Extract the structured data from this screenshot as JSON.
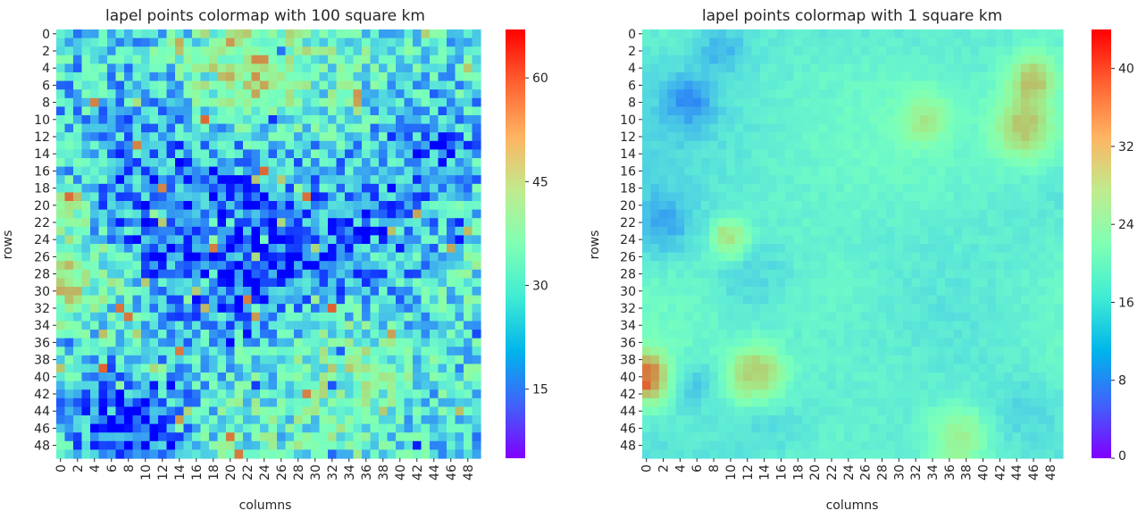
{
  "chart_data": [
    {
      "type": "heatmap",
      "title": "lapel points colormap with 100 square km",
      "xlabel": "columns",
      "ylabel": "rows",
      "rows": 50,
      "cols": 50,
      "x_tick_labels": [
        "0",
        "2",
        "4",
        "6",
        "8",
        "10",
        "12",
        "14",
        "16",
        "18",
        "20",
        "22",
        "24",
        "26",
        "28",
        "30",
        "32",
        "34",
        "36",
        "38",
        "40",
        "42",
        "44",
        "46",
        "48"
      ],
      "y_tick_labels": [
        "0",
        "2",
        "4",
        "6",
        "8",
        "10",
        "12",
        "14",
        "16",
        "18",
        "20",
        "22",
        "24",
        "26",
        "28",
        "30",
        "32",
        "34",
        "36",
        "38",
        "40",
        "42",
        "44",
        "46",
        "48"
      ],
      "colormap": "rainbow",
      "vmin": 5,
      "vmax": 67,
      "colorbar_ticks": [
        15,
        30,
        45,
        60
      ],
      "colorbar_tick_labels": [
        "15",
        "30",
        "45",
        "60"
      ],
      "grid": false,
      "texture": "noisy",
      "regions": [
        {
          "row": 20,
          "col": 12,
          "r": 12,
          "value": 16
        },
        {
          "row": 26,
          "col": 22,
          "r": 8,
          "value": 10
        },
        {
          "row": 46,
          "col": 10,
          "r": 5,
          "value": 8
        },
        {
          "row": 45,
          "col": 4,
          "r": 5,
          "value": 18
        },
        {
          "row": 24,
          "col": 36,
          "r": 8,
          "value": 17
        },
        {
          "row": 14,
          "col": 44,
          "r": 6,
          "value": 16
        },
        {
          "row": 28,
          "col": 2,
          "r": 5,
          "value": 47
        },
        {
          "row": 4,
          "col": 22,
          "r": 6,
          "value": 47
        },
        {
          "row": 20,
          "col": 1,
          "r": 2,
          "value": 62
        },
        {
          "row": 38,
          "col": 34,
          "r": 6,
          "value": 38
        }
      ]
    },
    {
      "type": "heatmap",
      "title": "lapel points colormap with 1 square km",
      "xlabel": "columns",
      "ylabel": "rows",
      "rows": 50,
      "cols": 50,
      "x_tick_labels": [
        "0",
        "2",
        "4",
        "6",
        "8",
        "10",
        "12",
        "14",
        "16",
        "18",
        "20",
        "22",
        "24",
        "26",
        "28",
        "30",
        "32",
        "34",
        "36",
        "38",
        "40",
        "42",
        "44",
        "46",
        "48"
      ],
      "y_tick_labels": [
        "0",
        "2",
        "4",
        "6",
        "8",
        "10",
        "12",
        "14",
        "16",
        "18",
        "20",
        "22",
        "24",
        "26",
        "28",
        "30",
        "32",
        "34",
        "36",
        "38",
        "40",
        "42",
        "44",
        "46",
        "48"
      ],
      "colormap": "rainbow",
      "vmin": 0,
      "vmax": 44,
      "colorbar_ticks": [
        0,
        8,
        16,
        24,
        32,
        40
      ],
      "colorbar_tick_labels": [
        "0",
        "8",
        "16",
        "24",
        "32",
        "40"
      ],
      "grid": false,
      "texture": "smooth",
      "regions": [
        {
          "row": 8,
          "col": 5,
          "r": 3,
          "value": 8
        },
        {
          "row": 2,
          "col": 9,
          "r": 3,
          "value": 11
        },
        {
          "row": 22,
          "col": 2,
          "r": 4,
          "value": 10
        },
        {
          "row": 28,
          "col": 13,
          "r": 4,
          "value": 12
        },
        {
          "row": 41,
          "col": 5,
          "r": 3,
          "value": 12
        },
        {
          "row": 45,
          "col": 14,
          "r": 4,
          "value": 14
        },
        {
          "row": 44,
          "col": 45,
          "r": 4,
          "value": 14
        },
        {
          "row": 40,
          "col": 0,
          "r": 3,
          "value": 40
        },
        {
          "row": 40,
          "col": 13,
          "r": 3,
          "value": 38
        },
        {
          "row": 24,
          "col": 10,
          "r": 2,
          "value": 35
        },
        {
          "row": 11,
          "col": 45,
          "r": 4,
          "value": 32
        },
        {
          "row": 5,
          "col": 46,
          "r": 3,
          "value": 31
        },
        {
          "row": 47,
          "col": 37,
          "r": 3,
          "value": 30
        },
        {
          "row": 10,
          "col": 33,
          "r": 3,
          "value": 28
        },
        {
          "row": 30,
          "col": 20,
          "r": 12,
          "value": 18
        },
        {
          "row": 45,
          "col": 30,
          "r": 8,
          "value": 17
        }
      ]
    }
  ]
}
